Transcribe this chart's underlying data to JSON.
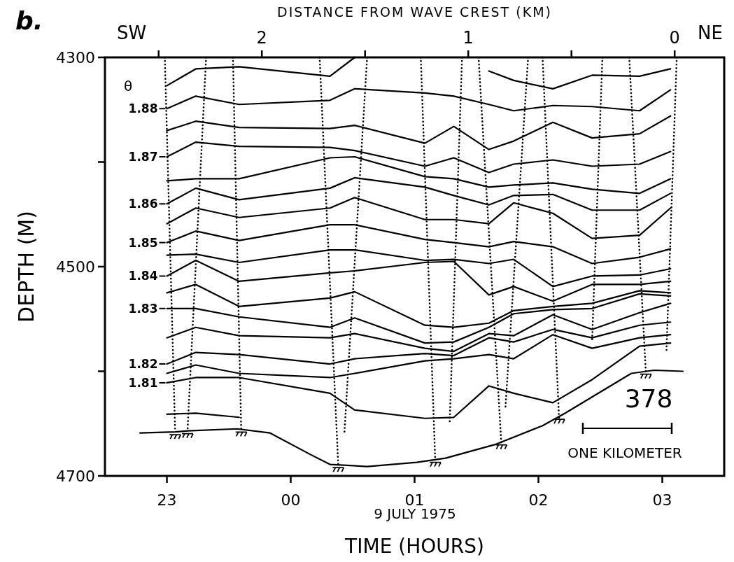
{
  "chart_data": {
    "type": "line",
    "xlabel": "TIME (HOURS)",
    "ylabel": "DEPTH (M)",
    "x2label": "DISTANCE FROM WAVE CREST (KM)",
    "annotations": [
      "b.",
      "SW",
      "NE",
      "θ",
      "9 JULY 1975",
      "378",
      "ONE KILOMETER"
    ],
    "xlim": [
      "1975-07-08T22:30",
      "1975-07-09T03:30"
    ],
    "xticks": [
      {
        "value": "1975-07-08T23:00",
        "label": "23"
      },
      {
        "value": "1975-07-09T00:00",
        "label": "00"
      },
      {
        "value": "1975-07-09T01:00",
        "label": "01"
      },
      {
        "value": "1975-07-09T02:00",
        "label": "02"
      },
      {
        "value": "1975-07-09T03:00",
        "label": "03"
      }
    ],
    "x2lim": [
      2.76,
      -0.24
    ],
    "x2ticks": [
      {
        "value": 2.5,
        "label": null
      },
      2,
      {
        "value": 1.5,
        "label": null
      },
      1,
      {
        "value": 0.5,
        "label": null
      },
      0
    ],
    "ylim": [
      4700,
      4300
    ],
    "yticks": [
      4300,
      {
        "value": 4400,
        "label": null
      },
      4500,
      {
        "value": 4600,
        "label": null
      },
      4700
    ],
    "grid": false,
    "legend": "left",
    "line_style": "solid",
    "x": [
      "1975-07-08T23:00",
      "1975-07-08T23:14",
      "1975-07-08T23:35",
      "1975-07-09T00:19",
      "1975-07-09T00:31",
      "1975-07-09T01:05",
      "1975-07-09T01:19",
      "1975-07-09T01:36",
      "1975-07-09T01:48",
      "1975-07-09T02:07",
      "1975-07-09T02:26",
      "1975-07-09T02:49",
      "1975-07-09T03:04"
    ],
    "series": [
      {
        "color": "#000000",
        "values": [
          4327,
          4311,
          4309,
          4318,
          4300,
          null,
          null,
          4313,
          4322,
          4330,
          4317,
          4318,
          4311
        ]
      },
      {
        "name": "1.88",
        "color": "#000000",
        "values": [
          4349,
          4337,
          4345,
          4341,
          4330,
          4334,
          4337,
          4345,
          4351,
          4346,
          4347,
          4351,
          4331
        ]
      },
      {
        "color": "#000000",
        "values": [
          4370,
          4361,
          4367,
          4368,
          4365,
          4382,
          4366,
          4388,
          4380,
          4362,
          4377,
          4373,
          4356
        ]
      },
      {
        "name": "1.87",
        "color": "#000000",
        "values": [
          4395,
          4381,
          4385,
          4386,
          4389,
          4404,
          4396,
          4410,
          4402,
          4398,
          4404,
          4402,
          4390
        ]
      },
      {
        "color": "#000000",
        "values": [
          4418,
          4416,
          4416,
          4396,
          4395,
          4414,
          4416,
          4424,
          4422,
          4420,
          4426,
          4430,
          4416
        ]
      },
      {
        "name": "1.86",
        "color": "#000000",
        "values": [
          4440,
          4425,
          4436,
          4425,
          4415,
          4424,
          4432,
          4441,
          4432,
          4431,
          4446,
          4446,
          4430
        ]
      },
      {
        "color": "#000000",
        "values": [
          4459,
          4444,
          4453,
          4444,
          4434,
          4455,
          4455,
          4459,
          4439,
          4449,
          4473,
          4470,
          4444
        ]
      },
      {
        "name": "1.85",
        "color": "#000000",
        "values": [
          4477,
          4466,
          4475,
          4460,
          4460,
          4474,
          4477,
          4481,
          4476,
          4481,
          4497,
          4491,
          4483
        ]
      },
      {
        "color": "#000000",
        "values": [
          4489,
          4488,
          4496,
          4484,
          4484,
          4494,
          4493,
          4497,
          4493,
          4519,
          4509,
          4508,
          4502
        ]
      },
      {
        "name": "1.84",
        "color": "#000000",
        "values": [
          4509,
          4494,
          4514,
          4506,
          4504,
          4496,
          4495,
          4527,
          4519,
          4533,
          4517,
          4517,
          4514
        ]
      },
      {
        "color": "#000000",
        "values": [
          4525,
          4517,
          4538,
          4530,
          4524,
          4556,
          4558,
          4554,
          4542,
          4538,
          4535,
          4523,
          4525
        ]
      },
      {
        "name": "1.83",
        "color": "#000000",
        "values": [
          4540,
          4540,
          4548,
          4558,
          4549,
          4573,
          4572,
          4558,
          4545,
          4541,
          4540,
          4526,
          4528
        ]
      },
      {
        "color": "#000000",
        "values": [
          4568,
          4558,
          4566,
          4568,
          4564,
          4578,
          4581,
          4564,
          4566,
          4546,
          4560,
          4544,
          4535
        ]
      },
      {
        "name": "1.82",
        "color": "#000000",
        "values": [
          4593,
          4582,
          4584,
          4593,
          4588,
          4583,
          4585,
          4568,
          4572,
          4560,
          4568,
          4556,
          4553
        ]
      },
      {
        "color": "#000000",
        "values": [
          4602,
          4594,
          4602,
          4606,
          4602,
          4590,
          4588,
          4584,
          4588,
          4565,
          4578,
          4568,
          4565
        ]
      },
      {
        "name": "1.81",
        "color": "#000000",
        "values": [
          4611,
          4606,
          4606,
          4621,
          4637,
          4645,
          4644,
          4614,
          4621,
          4630,
          4608,
          4576,
          4573
        ]
      },
      {
        "color": "#000000",
        "values": [
          4641,
          4640,
          4644,
          null,
          null,
          null,
          null,
          null,
          null,
          null,
          null,
          null,
          null
        ]
      },
      {
        "color": "#000000",
        "x": [
          "1975-07-08T22:47",
          "1975-07-08T23:04",
          "1975-07-08T23:10",
          "1975-07-08T23:34",
          "1975-07-08T23:50",
          "1975-07-09T00:10",
          "1975-07-09T00:19",
          "1975-07-09T00:37",
          "1975-07-09T01:01",
          "1975-07-09T01:15",
          "1975-07-09T01:39",
          "1975-07-09T02:02",
          "1975-07-09T02:13",
          "1975-07-09T02:45",
          "1975-07-09T02:56",
          "1975-07-09T03:10"
        ],
        "values": [
          4659,
          4658,
          4657,
          4655,
          4659,
          4680,
          4689,
          4691,
          4687,
          4683,
          4670,
          4652,
          4640,
          4602,
          4599,
          4600
        ]
      },
      {
        "color": "#000000",
        "line_style": "dotted",
        "x": [
          "1975-07-08T22:59",
          "1975-07-08T23:04"
        ],
        "values": [
          4300,
          4658
        ]
      },
      {
        "color": "#000000",
        "line_style": "dotted",
        "x": [
          "1975-07-08T23:19",
          "1975-07-08T23:10"
        ],
        "values": [
          4300,
          4657
        ]
      },
      {
        "color": "#000000",
        "line_style": "dotted",
        "x": [
          "1975-07-08T23:32",
          "1975-07-08T23:36"
        ],
        "values": [
          4300,
          4655
        ]
      },
      {
        "color": "#000000",
        "line_style": "dotted",
        "x": [
          "1975-07-09T00:14",
          "1975-07-09T00:23"
        ],
        "values": [
          4300,
          4689
        ]
      },
      {
        "color": "#000000",
        "line_style": "dotted",
        "x": [
          "1975-07-09T00:37",
          "1975-07-09T00:26"
        ],
        "values": [
          4300,
          4659
        ]
      },
      {
        "color": "#000000",
        "line_style": "dotted",
        "x": [
          "1975-07-09T01:03",
          "1975-07-09T01:10"
        ],
        "values": [
          4300,
          4685
        ]
      },
      {
        "color": "#000000",
        "line_style": "dotted",
        "x": [
          "1975-07-09T01:23",
          "1975-07-09T01:17"
        ],
        "values": [
          4300,
          4649
        ]
      },
      {
        "color": "#000000",
        "line_style": "dotted",
        "x": [
          "1975-07-09T01:31",
          "1975-07-09T01:42"
        ],
        "values": [
          4300,
          4668
        ]
      },
      {
        "color": "#000000",
        "line_style": "dotted",
        "x": [
          "1975-07-09T01:55",
          "1975-07-09T01:44"
        ],
        "values": [
          4300,
          4635
        ]
      },
      {
        "color": "#000000",
        "line_style": "dotted",
        "x": [
          "1975-07-09T02:02",
          "1975-07-09T02:10"
        ],
        "values": [
          4300,
          4645
        ]
      },
      {
        "color": "#000000",
        "line_style": "dotted",
        "x": [
          "1975-07-09T02:31",
          "1975-07-09T02:26"
        ],
        "values": [
          4300,
          4571
        ]
      },
      {
        "color": "#000000",
        "line_style": "dotted",
        "x": [
          "1975-07-09T02:44",
          "1975-07-09T02:52"
        ],
        "values": [
          4300,
          4600
        ]
      },
      {
        "color": "#000000",
        "line_style": "dotted",
        "x": [
          "1975-07-09T03:07",
          "1975-07-09T03:02"
        ],
        "values": [
          4300,
          4582
        ]
      }
    ]
  }
}
